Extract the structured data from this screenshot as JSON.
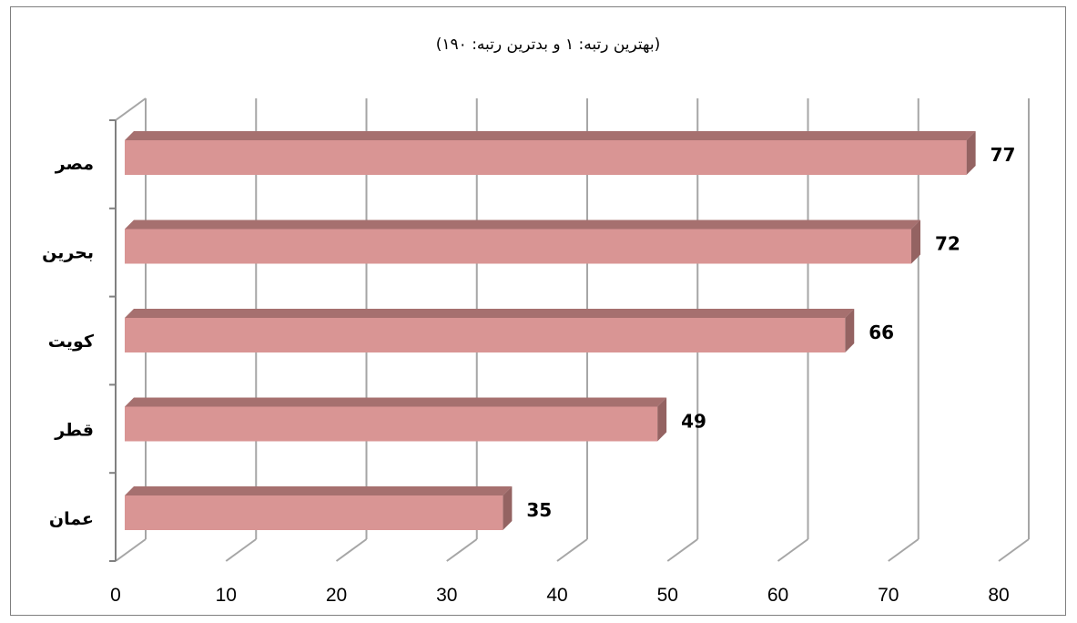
{
  "chart_data": {
    "type": "bar",
    "orientation": "horizontal",
    "subtitle": "(بهترین رتبه: ۱ و بدترین رتبه: ۱۹۰)",
    "categories": [
      "مصر",
      "بحرین",
      "کویت",
      "قطر",
      "عمان"
    ],
    "values": [
      77,
      72,
      66,
      49,
      35
    ],
    "x_ticks": [
      "0",
      "10",
      "20",
      "30",
      "40",
      "50",
      "60",
      "70",
      "80"
    ],
    "xlim": [
      0,
      80
    ],
    "grid": true,
    "legend": "none",
    "colors": {
      "bar_front": "#d99594",
      "bar_top": "#a6706f",
      "bar_side": "#946362",
      "grid": "#a6a6a6",
      "axis": "#808080",
      "border": "#7f7f7f"
    }
  }
}
